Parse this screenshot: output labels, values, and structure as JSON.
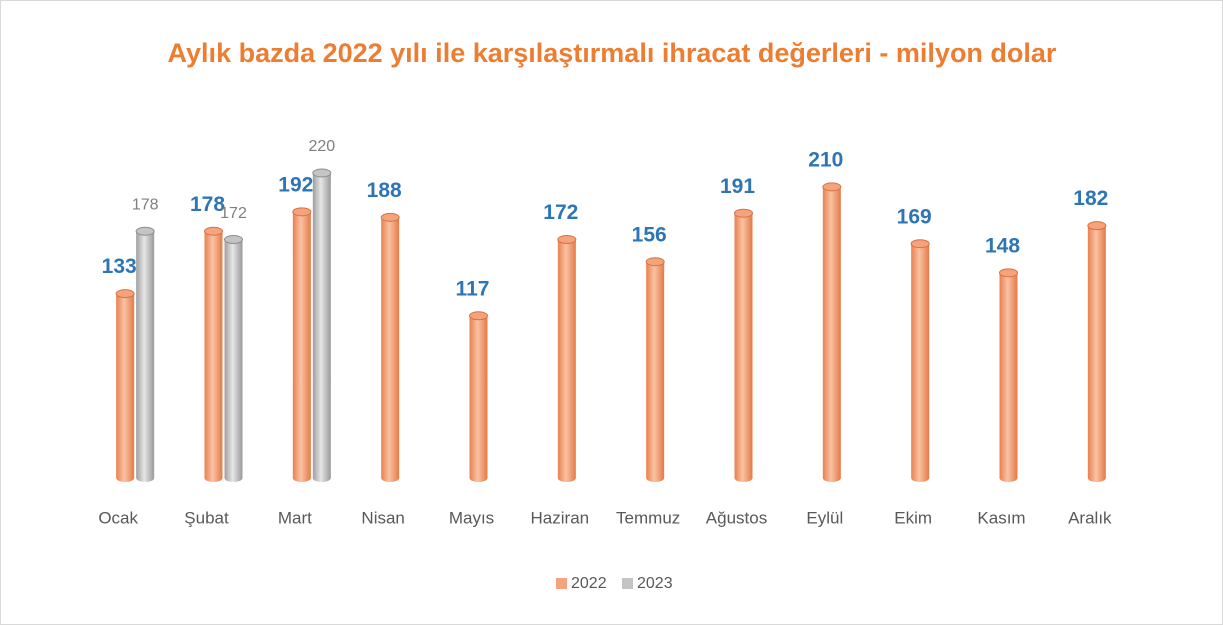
{
  "chart_data": {
    "type": "bar",
    "title": "Aylık bazda 2022 yılı ile karşılaştırmalı ihracat değerleri - milyon dolar",
    "categories": [
      "Ocak",
      "Şubat",
      "Mart",
      "Nisan",
      "Mayıs",
      "Haziran",
      "Temmuz",
      "Ağustos",
      "Eylül",
      "Ekim",
      "Kasım",
      "Aralık"
    ],
    "series": [
      {
        "name": "2022",
        "color": "#f4a37c",
        "values": [
          133,
          178,
          192,
          188,
          117,
          172,
          156,
          191,
          210,
          169,
          148,
          182
        ]
      },
      {
        "name": "2023",
        "color": "#c4c4c4",
        "values": [
          178,
          172,
          220,
          null,
          null,
          null,
          null,
          null,
          null,
          null,
          null,
          null
        ]
      }
    ],
    "legend": "bottom"
  }
}
